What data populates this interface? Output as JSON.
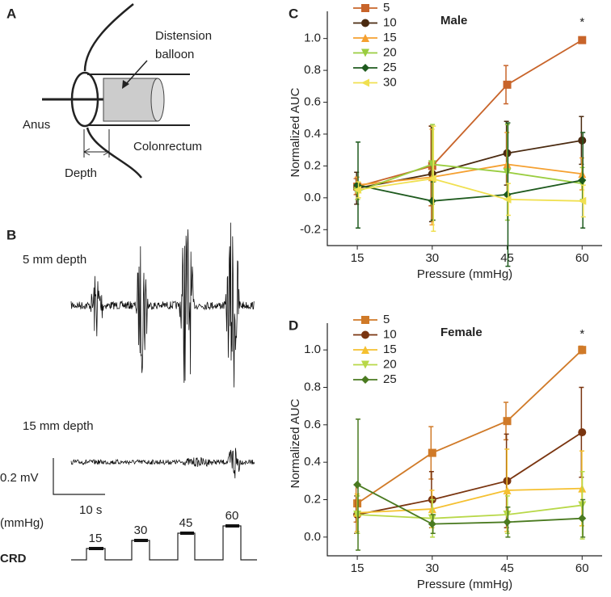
{
  "panel_a": {
    "label": "A",
    "balloon_line1": "Distension",
    "balloon_line2": "balloon",
    "anus": "Anus",
    "colonrectum": "Colonrectum",
    "depth": "Depth"
  },
  "panel_b": {
    "label": "B",
    "trace1": "5 mm depth",
    "trace2": "15 mm depth",
    "scale_v": "0.2 mV",
    "scale_t": "10 s",
    "unit": "(mmHg)",
    "crd": "CRD",
    "steps": [
      "15",
      "30",
      "45",
      "60"
    ]
  },
  "chart_data": [
    {
      "type": "line",
      "panel": "C",
      "title": "Male",
      "annotation": "*",
      "ylabel": "Normalized AUC",
      "xlabel": "Pressure (mmHg)",
      "x": [
        15,
        30,
        45,
        60
      ],
      "xlim": [
        9,
        64
      ],
      "xticks": [
        15,
        30,
        45,
        60
      ],
      "ylim": [
        -0.3,
        1.12
      ],
      "yticks": [
        {
          "value": -0.2,
          "label": "-0.2"
        },
        {
          "value": 0,
          "label": "0.0"
        },
        0.2,
        0.4,
        0.6,
        0.8,
        {
          "value": 1,
          "label": "1.0"
        }
      ],
      "series": [
        {
          "name": "5",
          "color": "#c8642a",
          "marker": "square",
          "values": [
            0.07,
            0.2,
            0.71,
            0.99
          ],
          "errors": [
            0.05,
            0.25,
            0.12,
            0.02
          ]
        },
        {
          "name": "10",
          "color": "#4a2a10",
          "marker": "circle",
          "values": [
            0.06,
            0.15,
            0.28,
            0.36
          ],
          "errors": [
            0.1,
            0.3,
            0.2,
            0.15
          ]
        },
        {
          "name": "15",
          "color": "#f5a030",
          "marker": "up",
          "values": [
            0.08,
            0.13,
            0.21,
            0.15
          ],
          "errors": [
            0.05,
            0.3,
            0.2,
            0.1
          ]
        },
        {
          "name": "20",
          "color": "#9acd40",
          "marker": "down",
          "values": [
            0.04,
            0.21,
            0.16,
            0.09
          ],
          "errors": [
            0.05,
            0.25,
            0.3,
            0.1
          ]
        },
        {
          "name": "25",
          "color": "#1e5a1e",
          "marker": "diamond",
          "values": [
            0.08,
            -0.02,
            0.02,
            0.11
          ],
          "errors": [
            0.27,
            0.12,
            0.45,
            0.3
          ]
        },
        {
          "name": "30",
          "color": "#f0e050",
          "marker": "left",
          "values": [
            0.05,
            0.12,
            -0.01,
            -0.02
          ],
          "errors": [
            0.05,
            0.33,
            0.1,
            0.1
          ]
        }
      ]
    },
    {
      "type": "line",
      "panel": "D",
      "title": "Female",
      "annotation": "*",
      "ylabel": "Normalized AUC",
      "xlabel": "Pressure (mmHg)",
      "x": [
        15,
        30,
        45,
        60
      ],
      "xlim": [
        9,
        64
      ],
      "xticks": [
        15,
        30,
        45,
        60
      ],
      "ylim": [
        -0.1,
        1.1
      ],
      "yticks": [
        {
          "value": 0,
          "label": "0.0"
        },
        0.2,
        0.4,
        0.6,
        0.8,
        {
          "value": 1,
          "label": "1.0"
        }
      ],
      "series": [
        {
          "name": "5",
          "color": "#d07a28",
          "marker": "square",
          "values": [
            0.18,
            0.45,
            0.62,
            1.0
          ],
          "errors": [
            0.1,
            0.14,
            0.1,
            0.02
          ]
        },
        {
          "name": "10",
          "color": "#7a3510",
          "marker": "circle",
          "values": [
            0.12,
            0.2,
            0.3,
            0.56
          ],
          "errors": [
            0.1,
            0.15,
            0.25,
            0.24
          ]
        },
        {
          "name": "15",
          "color": "#f5c030",
          "marker": "up",
          "values": [
            0.13,
            0.15,
            0.25,
            0.26
          ],
          "errors": [
            0.1,
            0.1,
            0.22,
            0.2
          ]
        },
        {
          "name": "20",
          "color": "#b8d848",
          "marker": "down",
          "values": [
            0.12,
            0.1,
            0.12,
            0.17
          ],
          "errors": [
            0.1,
            0.1,
            0.1,
            0.18
          ]
        },
        {
          "name": "25",
          "color": "#4a7a20",
          "marker": "diamond",
          "values": [
            0.28,
            0.07,
            0.08,
            0.1
          ],
          "errors": [
            0.35,
            0.05,
            0.08,
            0.1
          ]
        }
      ]
    }
  ]
}
